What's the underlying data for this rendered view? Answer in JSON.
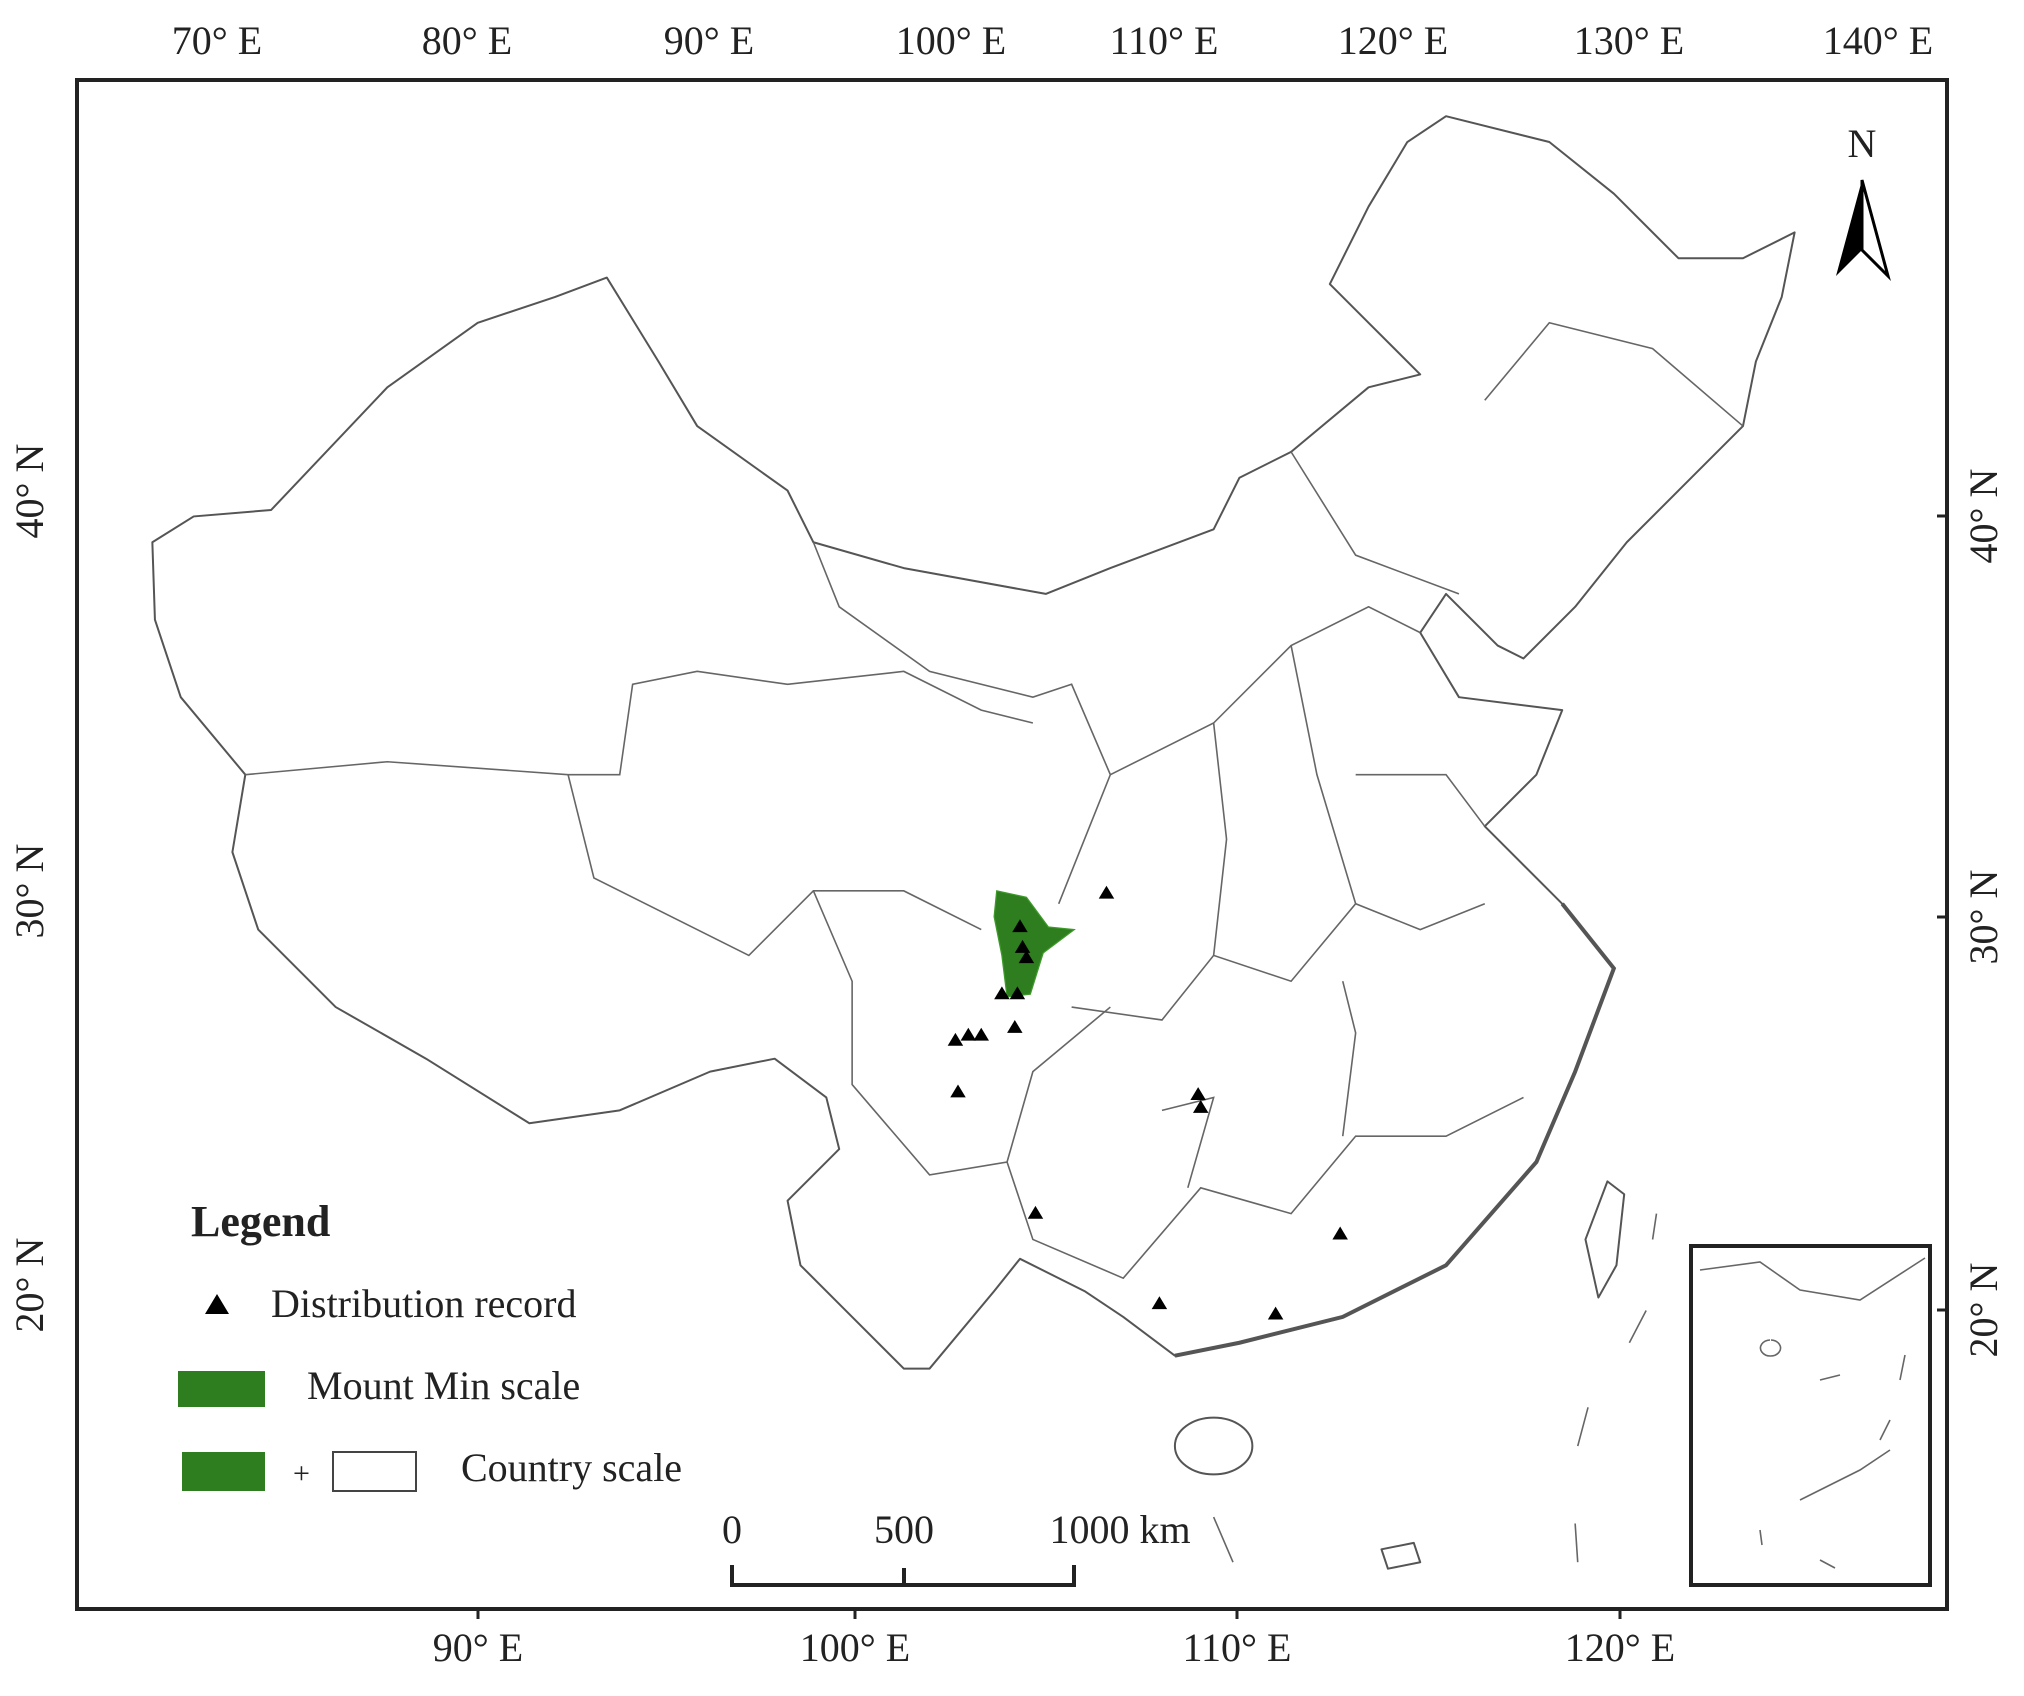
{
  "top_axis": {
    "labels": [
      "70° E",
      "80° E",
      "90° E",
      "100° E",
      "110° E",
      "120° E",
      "130° E",
      "140° E"
    ]
  },
  "bottom_axis": {
    "labels": [
      "90° E",
      "100° E",
      "110° E",
      "120° E"
    ]
  },
  "left_axis": {
    "labels": [
      "40° N",
      "30° N",
      "20° N"
    ]
  },
  "right_axis": {
    "labels": [
      "40° N",
      "30° N",
      "20° N"
    ]
  },
  "north": "N",
  "legend": {
    "title": "Legend",
    "items": [
      "Distribution record",
      "Mount Min scale",
      "Country scale"
    ],
    "plus": "+"
  },
  "scale_bar": {
    "labels": [
      "0",
      "500",
      "1000 km"
    ]
  }
}
